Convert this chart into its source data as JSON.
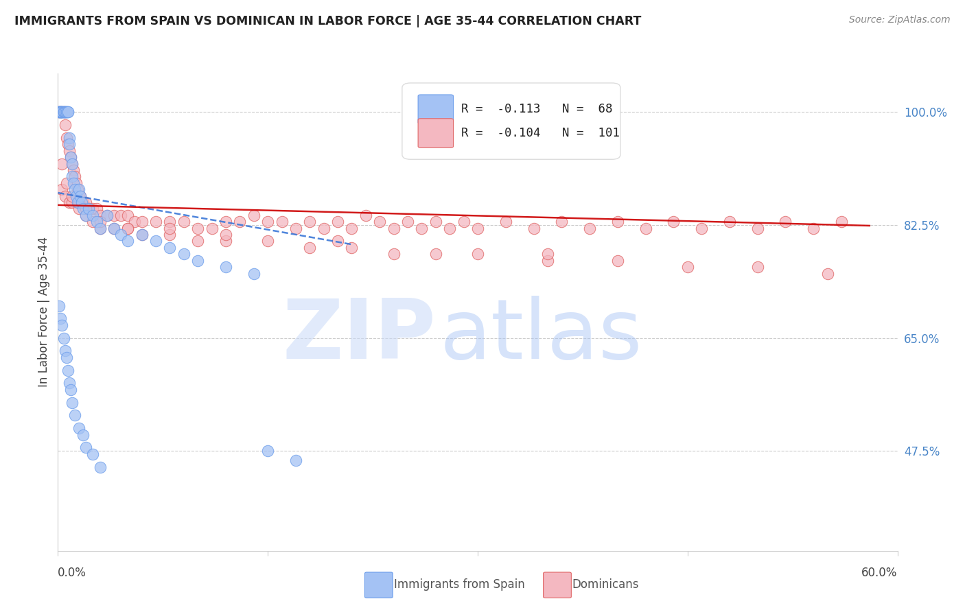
{
  "title": "IMMIGRANTS FROM SPAIN VS DOMINICAN IN LABOR FORCE | AGE 35-44 CORRELATION CHART",
  "source": "Source: ZipAtlas.com",
  "ylabel": "In Labor Force | Age 35-44",
  "ytick_labels": [
    "100.0%",
    "82.5%",
    "65.0%",
    "47.5%"
  ],
  "ytick_values": [
    1.0,
    0.825,
    0.65,
    0.475
  ],
  "xlim": [
    0.0,
    0.6
  ],
  "ylim": [
    0.32,
    1.06
  ],
  "spain_R": -0.113,
  "spain_N": 68,
  "dominican_R": -0.104,
  "dominican_N": 101,
  "spain_color": "#a4c2f4",
  "dominican_color": "#f4b8c1",
  "spain_edge_color": "#6d9eeb",
  "dominican_edge_color": "#e06666",
  "spain_trend_color": "#3c78d8",
  "dominican_trend_color": "#cc0000",
  "grid_color": "#cccccc",
  "tick_color": "#4a86c8",
  "title_color": "#222222",
  "source_color": "#888888",
  "label_color": "#444444",
  "watermark_zip_color": "#c9daf8",
  "watermark_atlas_color": "#a4c2f4",
  "bottom_label_color": "#555555",
  "spain_x": [
    0.001,
    0.001,
    0.001,
    0.002,
    0.002,
    0.002,
    0.002,
    0.003,
    0.003,
    0.003,
    0.003,
    0.004,
    0.004,
    0.004,
    0.005,
    0.005,
    0.005,
    0.006,
    0.006,
    0.007,
    0.007,
    0.008,
    0.008,
    0.009,
    0.01,
    0.01,
    0.011,
    0.012,
    0.013,
    0.014,
    0.015,
    0.016,
    0.017,
    0.018,
    0.02,
    0.022,
    0.025,
    0.028,
    0.03,
    0.035,
    0.04,
    0.045,
    0.05,
    0.06,
    0.07,
    0.08,
    0.09,
    0.1,
    0.12,
    0.14,
    0.001,
    0.002,
    0.003,
    0.004,
    0.005,
    0.006,
    0.007,
    0.008,
    0.009,
    0.01,
    0.012,
    0.015,
    0.018,
    0.02,
    0.025,
    0.03,
    0.15,
    0.17
  ],
  "spain_y": [
    1.0,
    1.0,
    1.0,
    1.0,
    1.0,
    1.0,
    1.0,
    1.0,
    1.0,
    1.0,
    1.0,
    1.0,
    1.0,
    1.0,
    1.0,
    1.0,
    1.0,
    1.0,
    1.0,
    1.0,
    1.0,
    0.96,
    0.95,
    0.93,
    0.92,
    0.9,
    0.89,
    0.88,
    0.87,
    0.86,
    0.88,
    0.87,
    0.86,
    0.85,
    0.84,
    0.85,
    0.84,
    0.83,
    0.82,
    0.84,
    0.82,
    0.81,
    0.8,
    0.81,
    0.8,
    0.79,
    0.78,
    0.77,
    0.76,
    0.75,
    0.7,
    0.68,
    0.67,
    0.65,
    0.63,
    0.62,
    0.6,
    0.58,
    0.57,
    0.55,
    0.53,
    0.51,
    0.5,
    0.48,
    0.47,
    0.45,
    0.475,
    0.46
  ],
  "dominican_x": [
    0.001,
    0.002,
    0.003,
    0.004,
    0.005,
    0.006,
    0.007,
    0.008,
    0.009,
    0.01,
    0.011,
    0.012,
    0.013,
    0.014,
    0.015,
    0.016,
    0.018,
    0.02,
    0.022,
    0.025,
    0.028,
    0.03,
    0.035,
    0.04,
    0.045,
    0.05,
    0.055,
    0.06,
    0.07,
    0.08,
    0.09,
    0.1,
    0.11,
    0.12,
    0.13,
    0.14,
    0.15,
    0.16,
    0.17,
    0.18,
    0.19,
    0.2,
    0.21,
    0.22,
    0.23,
    0.24,
    0.25,
    0.26,
    0.27,
    0.28,
    0.29,
    0.3,
    0.32,
    0.34,
    0.36,
    0.38,
    0.4,
    0.42,
    0.44,
    0.46,
    0.48,
    0.5,
    0.52,
    0.54,
    0.56,
    0.003,
    0.005,
    0.008,
    0.01,
    0.015,
    0.02,
    0.025,
    0.03,
    0.04,
    0.05,
    0.06,
    0.08,
    0.1,
    0.12,
    0.15,
    0.18,
    0.21,
    0.24,
    0.27,
    0.3,
    0.35,
    0.4,
    0.45,
    0.5,
    0.55,
    0.003,
    0.006,
    0.01,
    0.015,
    0.02,
    0.03,
    0.05,
    0.08,
    0.12,
    0.2,
    0.35
  ],
  "dominican_y": [
    1.0,
    1.0,
    1.0,
    1.0,
    0.98,
    0.96,
    0.95,
    0.94,
    0.93,
    0.92,
    0.91,
    0.9,
    0.89,
    0.88,
    0.87,
    0.87,
    0.86,
    0.86,
    0.85,
    0.85,
    0.85,
    0.84,
    0.84,
    0.84,
    0.84,
    0.84,
    0.83,
    0.83,
    0.83,
    0.83,
    0.83,
    0.82,
    0.82,
    0.83,
    0.83,
    0.84,
    0.83,
    0.83,
    0.82,
    0.83,
    0.82,
    0.83,
    0.82,
    0.84,
    0.83,
    0.82,
    0.83,
    0.82,
    0.83,
    0.82,
    0.83,
    0.82,
    0.83,
    0.82,
    0.83,
    0.82,
    0.83,
    0.82,
    0.83,
    0.82,
    0.83,
    0.82,
    0.83,
    0.82,
    0.83,
    0.88,
    0.87,
    0.86,
    0.86,
    0.85,
    0.84,
    0.83,
    0.82,
    0.82,
    0.82,
    0.81,
    0.81,
    0.8,
    0.8,
    0.8,
    0.79,
    0.79,
    0.78,
    0.78,
    0.78,
    0.77,
    0.77,
    0.76,
    0.76,
    0.75,
    0.92,
    0.89,
    0.87,
    0.86,
    0.85,
    0.83,
    0.82,
    0.82,
    0.81,
    0.8,
    0.78
  ],
  "spain_trend_x": [
    0.0,
    0.21
  ],
  "spain_trend_y": [
    0.875,
    0.795
  ],
  "dominican_trend_x": [
    0.0,
    0.58
  ],
  "dominican_trend_y": [
    0.856,
    0.824
  ]
}
